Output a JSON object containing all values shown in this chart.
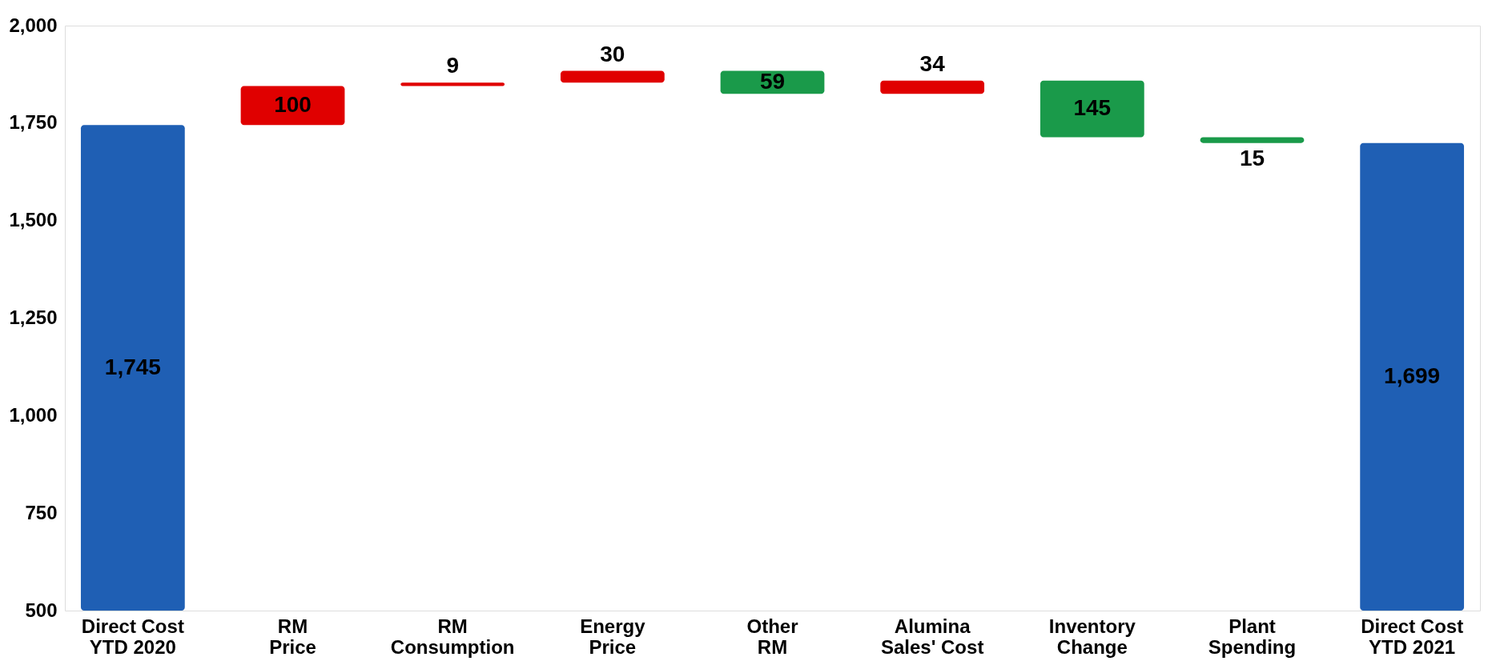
{
  "chart_data": {
    "type": "bar",
    "categories": [
      "Direct Cost\nYTD 2020",
      "RM\nPrice",
      "RM\nConsumption",
      "Energy\nPrice",
      "Other\nRM",
      "Alumina\nSales' Cost",
      "Inventory\nChange",
      "Plant\nSpending",
      "Direct Cost\nYTD 2021"
    ],
    "values": [
      1745,
      100,
      9,
      30,
      -59,
      34,
      -145,
      -15,
      1699
    ],
    "base": [
      null,
      1745,
      1845,
      1854,
      1884,
      1825,
      1859,
      1714,
      null
    ],
    "colors": [
      "#1f5fb4",
      "#e00000",
      "#e00000",
      "#e00000",
      "#1a9a4a",
      "#e00000",
      "#1a9a4a",
      "#1a9a4a",
      "#1f5fb4"
    ],
    "value_labels": [
      "1,745",
      "100",
      "9",
      "30",
      "59",
      "34",
      "145",
      "15",
      "1,699"
    ],
    "ylim": [
      500,
      2000
    ],
    "yticks": [
      {
        "value": 500,
        "label": "500"
      },
      {
        "value": 750,
        "label": "750"
      },
      {
        "value": 1000,
        "label": "1,000"
      },
      {
        "value": 1250,
        "label": "1,250"
      },
      {
        "value": 1500,
        "label": "1,500"
      },
      {
        "value": 1750,
        "label": "1,750"
      },
      {
        "value": 2000,
        "label": "2,000"
      }
    ],
    "grid": false
  }
}
